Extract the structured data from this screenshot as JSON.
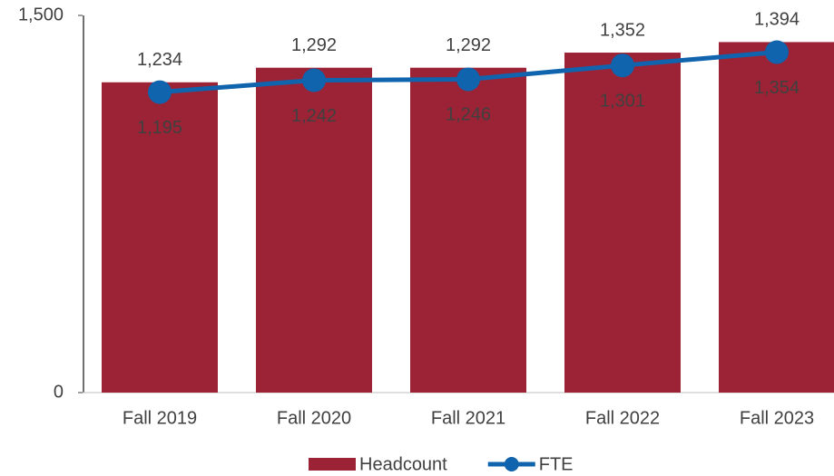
{
  "chart_data": {
    "type": "bar",
    "categories": [
      "Fall 2019",
      "Fall 2020",
      "Fall 2021",
      "Fall 2022",
      "Fall 2023"
    ],
    "series": [
      {
        "name": "Headcount",
        "type": "bar",
        "color": "#9b2335",
        "values": [
          1234,
          1292,
          1292,
          1352,
          1394
        ],
        "value_labels": [
          "1,234",
          "1,292",
          "1,292",
          "1,352",
          "1,394"
        ]
      },
      {
        "name": "FTE",
        "type": "line",
        "color": "#1063ad",
        "values": [
          1195,
          1242,
          1246,
          1301,
          1354
        ],
        "value_labels": [
          "1,195",
          "1,242",
          "1,246",
          "1,301",
          "1,354"
        ]
      }
    ],
    "ylim": [
      0,
      1500
    ],
    "yticks": [
      0,
      {
        "value": 1500,
        "label": "1,500"
      }
    ],
    "grid": false,
    "legend": "bottom"
  }
}
